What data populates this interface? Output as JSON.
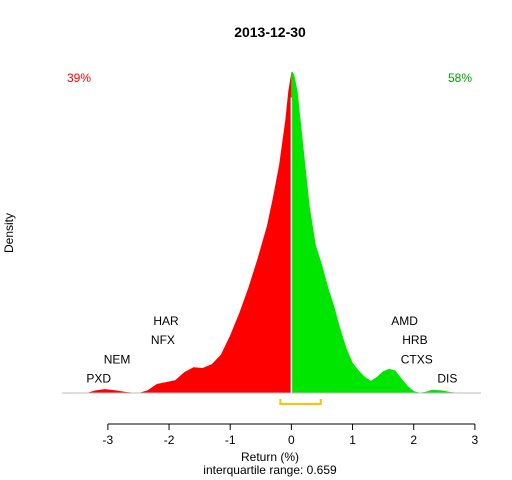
{
  "chart_data": {
    "type": "area",
    "title": "2013-12-30",
    "xlabel": "Return (%)",
    "subtitle": "interquartile range: 0.659",
    "ylabel": "Density",
    "xlim": [
      -3.75,
      3.1
    ],
    "ylim": [
      0,
      1
    ],
    "x_ticks": [
      -3,
      -2,
      -1,
      0,
      1,
      2,
      3
    ],
    "negative_pct": "39%",
    "positive_pct": "58%",
    "colors": {
      "negative": "#ff0000",
      "positive": "#00e600",
      "iqr": "#ffc000",
      "divider": "#ffffff"
    },
    "density": {
      "x": [
        -3.35,
        -3.2,
        -3.05,
        -2.9,
        -2.7,
        -2.5,
        -2.35,
        -2.2,
        -2.05,
        -1.9,
        -1.75,
        -1.6,
        -1.45,
        -1.3,
        -1.15,
        -1.0,
        -0.85,
        -0.7,
        -0.55,
        -0.4,
        -0.3,
        -0.2,
        -0.1,
        -0.05,
        0.0,
        0.02,
        0.05,
        0.1,
        0.15,
        0.2,
        0.3,
        0.4,
        0.5,
        0.6,
        0.7,
        0.8,
        0.9,
        1.0,
        1.1,
        1.2,
        1.3,
        1.4,
        1.5,
        1.6,
        1.7,
        1.8,
        1.9,
        2.0,
        2.1,
        2.2,
        2.3,
        2.45,
        2.6,
        2.75
      ],
      "y": [
        0.0,
        0.008,
        0.012,
        0.009,
        0.003,
        0.0,
        0.008,
        0.028,
        0.034,
        0.04,
        0.065,
        0.08,
        0.078,
        0.09,
        0.12,
        0.18,
        0.25,
        0.33,
        0.42,
        0.52,
        0.61,
        0.71,
        0.85,
        0.94,
        1.0,
        1.0,
        0.99,
        0.94,
        0.85,
        0.76,
        0.58,
        0.46,
        0.4,
        0.33,
        0.27,
        0.2,
        0.14,
        0.095,
        0.07,
        0.05,
        0.038,
        0.05,
        0.068,
        0.075,
        0.07,
        0.045,
        0.022,
        0.006,
        0.001,
        0.004,
        0.01,
        0.008,
        0.003,
        0.0
      ]
    },
    "iqr": {
      "lo": -0.18,
      "hi": 0.48
    },
    "labels": [
      {
        "text": "PXD",
        "x": -3.15,
        "y": 0.045
      },
      {
        "text": "NEM",
        "x": -2.85,
        "y": 0.105
      },
      {
        "text": "NFX",
        "x": -2.1,
        "y": 0.165
      },
      {
        "text": "HAR",
        "x": -2.05,
        "y": 0.225
      },
      {
        "text": "AMD",
        "x": 1.85,
        "y": 0.225
      },
      {
        "text": "HRB",
        "x": 2.02,
        "y": 0.165
      },
      {
        "text": "CTXS",
        "x": 2.05,
        "y": 0.105
      },
      {
        "text": "DIS",
        "x": 2.55,
        "y": 0.045
      }
    ]
  }
}
